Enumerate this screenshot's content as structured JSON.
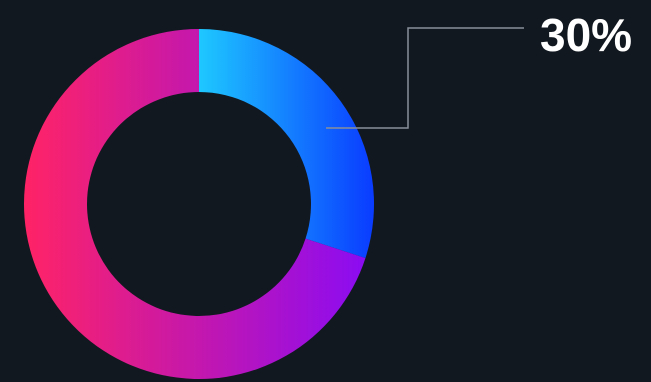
{
  "chart_data": {
    "type": "pie",
    "variant": "donut",
    "start": "top",
    "direction": "clockwise",
    "slices": [
      {
        "value": 30,
        "gradient": [
          "#1ec8ff",
          "#0a3cff"
        ]
      },
      {
        "value": 70,
        "gradient": [
          "#ff2366",
          "#8b0cf2"
        ]
      }
    ],
    "annotation": {
      "text": "30%",
      "slice": 0,
      "color": "#ffffff",
      "leader_color": "#8a9099"
    }
  },
  "background": "#121820"
}
